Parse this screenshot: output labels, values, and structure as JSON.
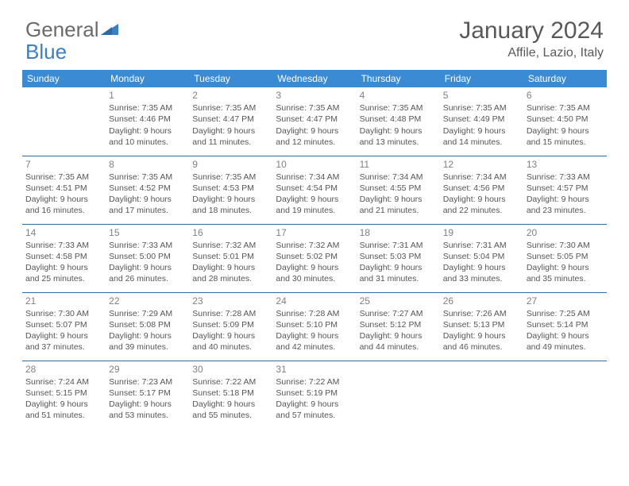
{
  "header": {
    "logo_text_part1": "General",
    "logo_text_part2": "Blue",
    "title": "January 2024",
    "location": "Affile, Lazio, Italy"
  },
  "colors": {
    "header_bg": "#3b8bd4",
    "border": "#2f6aa8",
    "logo_blue": "#3b7fc4",
    "text_gray": "#58595b"
  },
  "weekdays": [
    "Sunday",
    "Monday",
    "Tuesday",
    "Wednesday",
    "Thursday",
    "Friday",
    "Saturday"
  ],
  "days": [
    {
      "n": "1",
      "sr": "7:35 AM",
      "ss": "4:46 PM",
      "dl": "9 hours and 10 minutes."
    },
    {
      "n": "2",
      "sr": "7:35 AM",
      "ss": "4:47 PM",
      "dl": "9 hours and 11 minutes."
    },
    {
      "n": "3",
      "sr": "7:35 AM",
      "ss": "4:47 PM",
      "dl": "9 hours and 12 minutes."
    },
    {
      "n": "4",
      "sr": "7:35 AM",
      "ss": "4:48 PM",
      "dl": "9 hours and 13 minutes."
    },
    {
      "n": "5",
      "sr": "7:35 AM",
      "ss": "4:49 PM",
      "dl": "9 hours and 14 minutes."
    },
    {
      "n": "6",
      "sr": "7:35 AM",
      "ss": "4:50 PM",
      "dl": "9 hours and 15 minutes."
    },
    {
      "n": "7",
      "sr": "7:35 AM",
      "ss": "4:51 PM",
      "dl": "9 hours and 16 minutes."
    },
    {
      "n": "8",
      "sr": "7:35 AM",
      "ss": "4:52 PM",
      "dl": "9 hours and 17 minutes."
    },
    {
      "n": "9",
      "sr": "7:35 AM",
      "ss": "4:53 PM",
      "dl": "9 hours and 18 minutes."
    },
    {
      "n": "10",
      "sr": "7:34 AM",
      "ss": "4:54 PM",
      "dl": "9 hours and 19 minutes."
    },
    {
      "n": "11",
      "sr": "7:34 AM",
      "ss": "4:55 PM",
      "dl": "9 hours and 21 minutes."
    },
    {
      "n": "12",
      "sr": "7:34 AM",
      "ss": "4:56 PM",
      "dl": "9 hours and 22 minutes."
    },
    {
      "n": "13",
      "sr": "7:33 AM",
      "ss": "4:57 PM",
      "dl": "9 hours and 23 minutes."
    },
    {
      "n": "14",
      "sr": "7:33 AM",
      "ss": "4:58 PM",
      "dl": "9 hours and 25 minutes."
    },
    {
      "n": "15",
      "sr": "7:33 AM",
      "ss": "5:00 PM",
      "dl": "9 hours and 26 minutes."
    },
    {
      "n": "16",
      "sr": "7:32 AM",
      "ss": "5:01 PM",
      "dl": "9 hours and 28 minutes."
    },
    {
      "n": "17",
      "sr": "7:32 AM",
      "ss": "5:02 PM",
      "dl": "9 hours and 30 minutes."
    },
    {
      "n": "18",
      "sr": "7:31 AM",
      "ss": "5:03 PM",
      "dl": "9 hours and 31 minutes."
    },
    {
      "n": "19",
      "sr": "7:31 AM",
      "ss": "5:04 PM",
      "dl": "9 hours and 33 minutes."
    },
    {
      "n": "20",
      "sr": "7:30 AM",
      "ss": "5:05 PM",
      "dl": "9 hours and 35 minutes."
    },
    {
      "n": "21",
      "sr": "7:30 AM",
      "ss": "5:07 PM",
      "dl": "9 hours and 37 minutes."
    },
    {
      "n": "22",
      "sr": "7:29 AM",
      "ss": "5:08 PM",
      "dl": "9 hours and 39 minutes."
    },
    {
      "n": "23",
      "sr": "7:28 AM",
      "ss": "5:09 PM",
      "dl": "9 hours and 40 minutes."
    },
    {
      "n": "24",
      "sr": "7:28 AM",
      "ss": "5:10 PM",
      "dl": "9 hours and 42 minutes."
    },
    {
      "n": "25",
      "sr": "7:27 AM",
      "ss": "5:12 PM",
      "dl": "9 hours and 44 minutes."
    },
    {
      "n": "26",
      "sr": "7:26 AM",
      "ss": "5:13 PM",
      "dl": "9 hours and 46 minutes."
    },
    {
      "n": "27",
      "sr": "7:25 AM",
      "ss": "5:14 PM",
      "dl": "9 hours and 49 minutes."
    },
    {
      "n": "28",
      "sr": "7:24 AM",
      "ss": "5:15 PM",
      "dl": "9 hours and 51 minutes."
    },
    {
      "n": "29",
      "sr": "7:23 AM",
      "ss": "5:17 PM",
      "dl": "9 hours and 53 minutes."
    },
    {
      "n": "30",
      "sr": "7:22 AM",
      "ss": "5:18 PM",
      "dl": "9 hours and 55 minutes."
    },
    {
      "n": "31",
      "sr": "7:22 AM",
      "ss": "5:19 PM",
      "dl": "9 hours and 57 minutes."
    }
  ],
  "labels": {
    "sunrise": "Sunrise: ",
    "sunset": "Sunset: ",
    "daylight": "Daylight: "
  },
  "layout": {
    "first_day_column": 1,
    "total_days": 31,
    "columns": 7
  }
}
